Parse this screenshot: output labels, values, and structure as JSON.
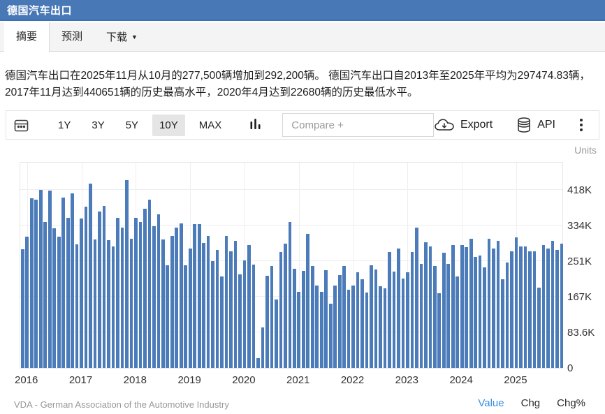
{
  "header": {
    "title": "德国汽车出口"
  },
  "tabs": [
    {
      "label": "摘要",
      "active": true
    },
    {
      "label": "预测",
      "active": false
    },
    {
      "label": "下载",
      "active": false,
      "has_dropdown": true
    }
  ],
  "summary": "德国汽车出口在2025年11月从10月的277,500辆增加到292,200辆。 德国汽车出口自2013年至2025年平均为297474.83辆，2017年11月达到440651辆的历史最高水平，2020年4月达到22680辆的历史最低水平。",
  "toolbar": {
    "ranges": [
      "1Y",
      "3Y",
      "5Y",
      "10Y",
      "MAX"
    ],
    "active_range": "10Y",
    "compare_placeholder": "Compare +",
    "export_label": "Export",
    "api_label": "API",
    "icons": [
      "calendar-icon",
      "column-chart-icon",
      "cloud-download-icon",
      "database-icon",
      "kebab-menu-icon"
    ]
  },
  "chart": {
    "units_label": "Units"
  },
  "footer": {
    "source": "VDA - German Association of the Automotive Industry",
    "links": [
      {
        "label": "Value",
        "active": true
      },
      {
        "label": "Chg",
        "active": false
      },
      {
        "label": "Chg%",
        "active": false
      }
    ]
  },
  "colors": {
    "header_bg": "#4878b6",
    "bar": "#4b7bb9",
    "active_link": "#3b8ce0",
    "tabbar_bg": "#f4f4f4"
  },
  "chart_data": {
    "type": "bar",
    "title": "德国汽车出口",
    "ylabel": "Units",
    "ylim": [
      0,
      485000
    ],
    "grid": true,
    "y_ticks": [
      {
        "label": "0",
        "value": 0
      },
      {
        "label": "83.6K",
        "value": 83600
      },
      {
        "label": "167K",
        "value": 167200
      },
      {
        "label": "251K",
        "value": 250800
      },
      {
        "label": "334K",
        "value": 334400
      },
      {
        "label": "418K",
        "value": 418000
      }
    ],
    "x_tick_labels": [
      "2016",
      "2017",
      "2018",
      "2019",
      "2020",
      "2021",
      "2022",
      "2023",
      "2024",
      "2025"
    ],
    "months": [
      "2015-12",
      "2016-01",
      "2016-02",
      "2016-03",
      "2016-04",
      "2016-05",
      "2016-06",
      "2016-07",
      "2016-08",
      "2016-09",
      "2016-10",
      "2016-11",
      "2016-12",
      "2017-01",
      "2017-02",
      "2017-03",
      "2017-04",
      "2017-05",
      "2017-06",
      "2017-07",
      "2017-08",
      "2017-09",
      "2017-10",
      "2017-11",
      "2017-12",
      "2018-01",
      "2018-02",
      "2018-03",
      "2018-04",
      "2018-05",
      "2018-06",
      "2018-07",
      "2018-08",
      "2018-09",
      "2018-10",
      "2018-11",
      "2018-12",
      "2019-01",
      "2019-02",
      "2019-03",
      "2019-04",
      "2019-05",
      "2019-06",
      "2019-07",
      "2019-08",
      "2019-09",
      "2019-10",
      "2019-11",
      "2019-12",
      "2020-01",
      "2020-02",
      "2020-03",
      "2020-04",
      "2020-05",
      "2020-06",
      "2020-07",
      "2020-08",
      "2020-09",
      "2020-10",
      "2020-11",
      "2020-12",
      "2021-01",
      "2021-02",
      "2021-03",
      "2021-04",
      "2021-05",
      "2021-06",
      "2021-07",
      "2021-08",
      "2021-09",
      "2021-10",
      "2021-11",
      "2021-12",
      "2022-01",
      "2022-02",
      "2022-03",
      "2022-04",
      "2022-05",
      "2022-06",
      "2022-07",
      "2022-08",
      "2022-09",
      "2022-10",
      "2022-11",
      "2022-12",
      "2023-01",
      "2023-02",
      "2023-03",
      "2023-04",
      "2023-05",
      "2023-06",
      "2023-07",
      "2023-08",
      "2023-09",
      "2023-10",
      "2023-11",
      "2023-12",
      "2024-01",
      "2024-02",
      "2024-03",
      "2024-04",
      "2024-05",
      "2024-06",
      "2024-07",
      "2024-08",
      "2024-09",
      "2024-10",
      "2024-11",
      "2024-12",
      "2025-01",
      "2025-02",
      "2025-03",
      "2025-04",
      "2025-05",
      "2025-06",
      "2025-07",
      "2025-08",
      "2025-09",
      "2025-10",
      "2025-11"
    ],
    "values": [
      278000,
      308000,
      398000,
      395000,
      418000,
      342000,
      416000,
      328000,
      308000,
      400000,
      352000,
      410000,
      290000,
      350000,
      378000,
      432000,
      302000,
      368000,
      380000,
      300000,
      285000,
      352000,
      330000,
      440651,
      304000,
      352000,
      342000,
      373000,
      395000,
      333000,
      361000,
      302000,
      241000,
      310000,
      330000,
      339000,
      241000,
      280000,
      338000,
      338000,
      294000,
      310000,
      251000,
      277000,
      215000,
      310000,
      274000,
      298000,
      220000,
      253000,
      289000,
      242000,
      22680,
      95000,
      217000,
      239000,
      161000,
      272000,
      292000,
      342000,
      233000,
      178000,
      228000,
      314000,
      239000,
      194000,
      178000,
      230000,
      151000,
      194000,
      218000,
      240000,
      184000,
      194000,
      225000,
      208000,
      177000,
      241000,
      231000,
      191000,
      187000,
      272000,
      226000,
      280000,
      210000,
      225000,
      272000,
      330000,
      244000,
      295000,
      285000,
      239000,
      176000,
      270000,
      245000,
      289000,
      214000,
      289000,
      284000,
      303000,
      261000,
      264000,
      236000,
      303000,
      281000,
      298000,
      208000,
      247000,
      273000,
      306000,
      286000,
      286000,
      273000,
      273000,
      189000,
      289000,
      281000,
      298000,
      277500,
      292200
    ],
    "annotations": {
      "latest": {
        "month": "2025-11",
        "value": 292200
      },
      "previous": {
        "month": "2025-10",
        "value": 277500
      },
      "record_high": {
        "month": "2017-11",
        "value": 440651
      },
      "record_low": {
        "month": "2020-04",
        "value": 22680
      },
      "average_2013_2025": 297474.83
    }
  }
}
